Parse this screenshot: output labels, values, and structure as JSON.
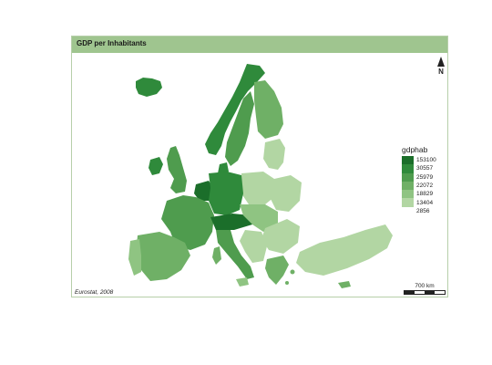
{
  "title": "GDP per Inhabitants",
  "north_label": "N",
  "legend": {
    "title": "gdphab",
    "breaks": [
      {
        "value": "153100",
        "color": "#1b6e2a"
      },
      {
        "value": "30557",
        "color": "#2f8a3b"
      },
      {
        "value": "25979",
        "color": "#4f9c4e"
      },
      {
        "value": "22072",
        "color": "#6fb066"
      },
      {
        "value": "18829",
        "color": "#8fc482"
      },
      {
        "value": "13404",
        "color": "#b2d6a3"
      },
      {
        "value": "2856",
        "color": null
      }
    ]
  },
  "source": "Eurostat, 2008",
  "scale": {
    "label": "700 km"
  },
  "colors": {
    "frame_border": "#b7cfaa",
    "title_bar": "#9fc58f",
    "highest": "#1b6e2a",
    "lowest": "#b2d6a3"
  }
}
